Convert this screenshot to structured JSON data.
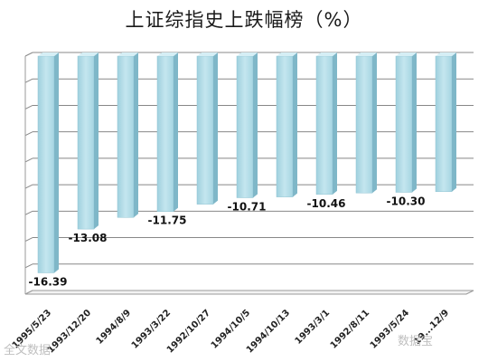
{
  "chart_data": {
    "type": "bar",
    "title": "上证综指史上跌幅榜（%）",
    "categories": [
      "1995/5/23",
      "1993/12/20",
      "1994/8/9",
      "1993/3/22",
      "1992/10/27",
      "1994/10/5",
      "1994/10/13",
      "1993/3/1",
      "1992/8/11",
      "1993/5/24",
      "19...12/9"
    ],
    "values": [
      -16.39,
      -13.08,
      -12.2,
      -11.75,
      -11.2,
      -10.71,
      -10.65,
      -10.46,
      -10.35,
      -10.3,
      -10.25
    ],
    "data_labels": [
      "-16.39",
      "-13.08",
      "",
      "-11.75",
      "",
      "-10.71",
      "",
      "-10.46",
      "",
      "-10.30",
      ""
    ],
    "ylim": [
      -18,
      0
    ],
    "grid": true,
    "bar_color": "#b7dde8",
    "grid_color": "#888888"
  },
  "watermark": {
    "right_text": "数据宝",
    "left_text": "全文数据"
  }
}
